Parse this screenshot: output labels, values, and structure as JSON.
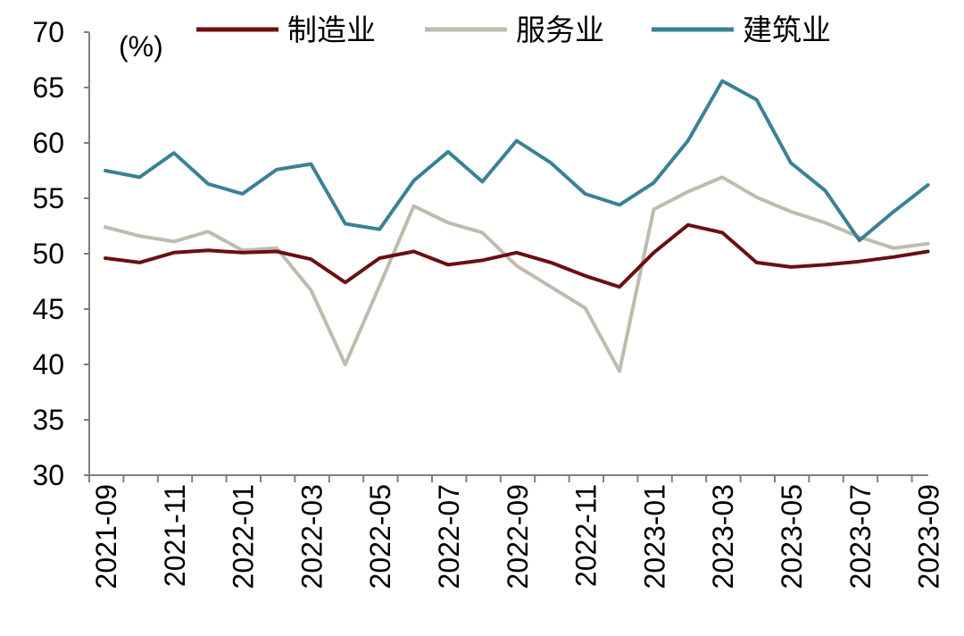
{
  "chart_data": {
    "type": "line",
    "title": "",
    "unit": "(%)",
    "xlabel": "",
    "ylabel": "",
    "ylim": [
      30,
      70
    ],
    "yticks": [
      30,
      35,
      40,
      45,
      50,
      55,
      60,
      65,
      70
    ],
    "grid": false,
    "legend_position": "top",
    "x": [
      "2021-09",
      "2021-10",
      "2021-11",
      "2021-12",
      "2022-01",
      "2022-02",
      "2022-03",
      "2022-04",
      "2022-05",
      "2022-06",
      "2022-07",
      "2022-08",
      "2022-09",
      "2022-10",
      "2022-11",
      "2022-12",
      "2023-01",
      "2023-02",
      "2023-03",
      "2023-04",
      "2023-05",
      "2023-06",
      "2023-07",
      "2023-08",
      "2023-09"
    ],
    "xtick_labels": [
      "2021-09",
      "2021-11",
      "2022-01",
      "2022-03",
      "2022-05",
      "2022-07",
      "2022-09",
      "2022-11",
      "2023-01",
      "2023-03",
      "2023-05",
      "2023-07",
      "2023-09"
    ],
    "series": [
      {
        "name": "制造业",
        "color": "#6b0f12",
        "values": [
          49.6,
          49.2,
          50.1,
          50.3,
          50.1,
          50.2,
          49.5,
          47.4,
          49.6,
          50.2,
          49.0,
          49.4,
          50.1,
          49.2,
          48.0,
          47.0,
          50.1,
          52.6,
          51.9,
          49.2,
          48.8,
          49.0,
          49.3,
          49.7,
          50.2
        ]
      },
      {
        "name": "服务业",
        "color": "#bdbcae",
        "values": [
          52.4,
          51.6,
          51.1,
          52.0,
          50.3,
          50.5,
          46.7,
          40.0,
          47.1,
          54.3,
          52.8,
          51.9,
          48.9,
          47.0,
          45.1,
          39.4,
          54.0,
          55.6,
          56.9,
          55.1,
          53.8,
          52.8,
          51.5,
          50.5,
          50.9
        ]
      },
      {
        "name": "建筑业",
        "color": "#3a8196",
        "values": [
          57.5,
          56.9,
          59.1,
          56.3,
          55.4,
          57.6,
          58.1,
          52.7,
          52.2,
          56.6,
          59.2,
          56.5,
          60.2,
          58.2,
          55.4,
          54.4,
          56.4,
          60.2,
          65.6,
          63.9,
          58.2,
          55.7,
          51.2,
          53.8,
          56.2
        ]
      }
    ]
  }
}
